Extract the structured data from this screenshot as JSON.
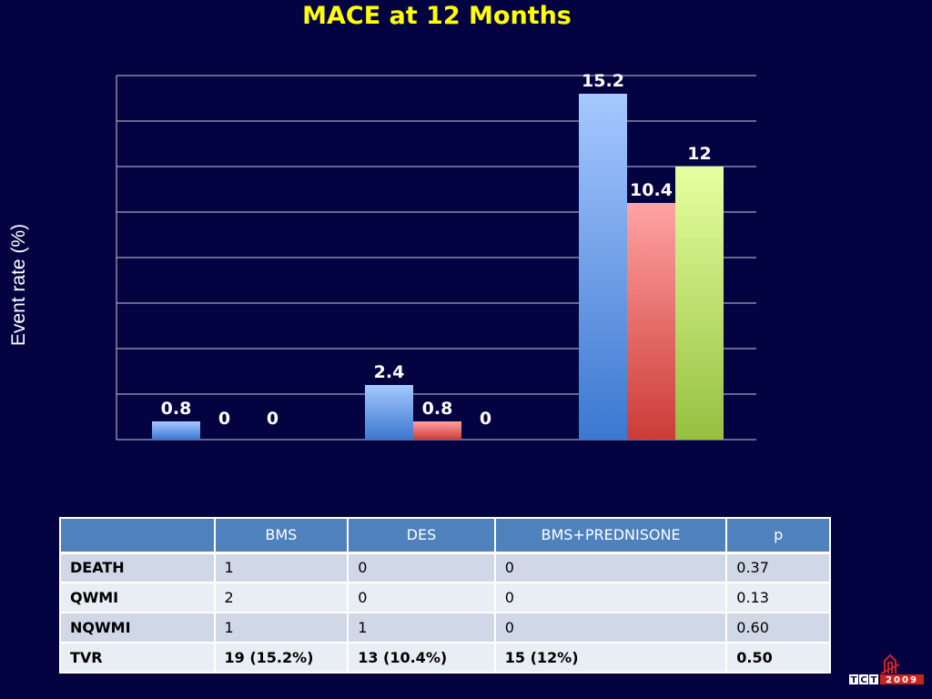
{
  "title": "MACE at 12 Months",
  "chart_data": {
    "type": "bar",
    "title": "MACE at 12 Months",
    "xlabel": "",
    "ylabel": "Event rate (%)",
    "ylim": [
      0,
      16
    ],
    "grid": true,
    "categories": [
      "",
      "",
      ""
    ],
    "series": [
      {
        "color": "#5b95e6",
        "values": [
          0.8,
          2.4,
          15.2
        ]
      },
      {
        "color": "#e86460",
        "values": [
          0,
          0.8,
          10.4
        ]
      },
      {
        "color": "#bde070",
        "values": [
          0,
          0,
          12
        ]
      }
    ],
    "data_labels": [
      [
        "0.8",
        "2.4",
        "15.2"
      ],
      [
        "0",
        "0.8",
        "10.4"
      ],
      [
        "0",
        "0",
        "12"
      ]
    ]
  },
  "table": {
    "headers": [
      "",
      "BMS",
      "DES",
      "BMS+PREDNISONE",
      "p"
    ],
    "rows": [
      [
        "DEATH",
        "1",
        "0",
        "0",
        "0.37"
      ],
      [
        "QWMI",
        "2",
        "0",
        "0",
        "0.13"
      ],
      [
        "NQWMI",
        "1",
        "1",
        "0",
        "0.60"
      ],
      [
        "TVR",
        "19  (15.2%)",
        "13 (10.4%)",
        "15 (12%)",
        "0.50"
      ]
    ]
  },
  "logo": {
    "text": "TCT",
    "year": "2009",
    "name": "tct-2009-logo"
  }
}
